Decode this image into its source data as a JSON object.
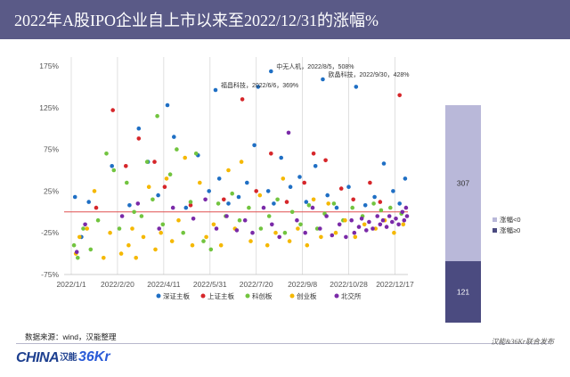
{
  "title": "2022年A股IPO企业自上市以来至2022/12/31的涨幅%",
  "source": "数据来源：wind，汉能整理",
  "footer_note": "汉能&36Kr联合发布",
  "logos": {
    "china": "CHINA",
    "china_cn": "汉能",
    "kr": "36Kr"
  },
  "colors": {
    "header_bg": "#5a5a87",
    "sh_sz_main": "#1f6fc4",
    "sh_main": "#d6262a",
    "star": "#72c43f",
    "chinext": "#f5b800",
    "bse": "#7a2aa8",
    "bar_up": "#b9b8d9",
    "bar_down": "#4b4b80",
    "zero_line": "#e05050"
  },
  "chart_data": [
    {
      "type": "scatter",
      "xlabel": "",
      "ylabel": "",
      "ylim": [
        -75,
        175
      ],
      "yticks": [
        "175%",
        "125%",
        "75%",
        "25%",
        "-25%",
        "-75%"
      ],
      "ytick_values": [
        175,
        125,
        75,
        25,
        -25,
        -75
      ],
      "xlim": [
        "2022-01-01",
        "2022-12-31"
      ],
      "xticks": [
        "2022/1/1",
        "2022/2/20",
        "2022/4/11",
        "2022/5/31",
        "2022/7/20",
        "2022/9/8",
        "2022/10/28",
        "2022/12/17"
      ],
      "xtick_dates": [
        "2022-01-01",
        "2022-02-20",
        "2022-04-11",
        "2022-05-31",
        "2022-07-20",
        "2022-09-08",
        "2022-10-28",
        "2022-12-17"
      ],
      "legend_position": "bottom",
      "annotations": [
        {
          "text": "中无人机，2022/8/5，508%",
          "date": "2022-08-05",
          "value": 508
        },
        {
          "text": "欧晶科技，2022/9/30，428%",
          "date": "2022-09-30",
          "value": 428
        },
        {
          "text": "福昌科技，2022/6/6，369%",
          "date": "2022-06-06",
          "value": 369
        }
      ],
      "series": [
        {
          "name": "深证主板",
          "color": "#1f6fc4",
          "points": [
            [
              "2022-01-05",
              18
            ],
            [
              "2022-01-12",
              -30
            ],
            [
              "2022-01-20",
              12
            ],
            [
              "2022-02-14",
              55
            ],
            [
              "2022-03-05",
              8
            ],
            [
              "2022-03-15",
              100
            ],
            [
              "2022-03-25",
              60
            ],
            [
              "2022-04-05",
              20
            ],
            [
              "2022-04-15",
              128
            ],
            [
              "2022-04-22",
              90
            ],
            [
              "2022-05-05",
              5
            ],
            [
              "2022-05-18",
              68
            ],
            [
              "2022-05-30",
              25
            ],
            [
              "2022-06-10",
              40
            ],
            [
              "2022-06-20",
              10
            ],
            [
              "2022-07-01",
              18
            ],
            [
              "2022-07-10",
              35
            ],
            [
              "2022-07-18",
              80
            ],
            [
              "2022-07-22",
              150
            ],
            [
              "2022-08-02",
              25
            ],
            [
              "2022-08-08",
              10
            ],
            [
              "2022-08-16",
              65
            ],
            [
              "2022-08-26",
              30
            ],
            [
              "2022-09-05",
              42
            ],
            [
              "2022-09-12",
              12
            ],
            [
              "2022-09-22",
              55
            ],
            [
              "2022-10-05",
              20
            ],
            [
              "2022-10-15",
              5
            ],
            [
              "2022-10-28",
              30
            ],
            [
              "2022-11-05",
              150
            ],
            [
              "2022-11-15",
              8
            ],
            [
              "2022-11-25",
              18
            ],
            [
              "2022-12-05",
              58
            ],
            [
              "2022-12-15",
              25
            ],
            [
              "2022-12-22",
              10
            ],
            [
              "2022-12-28",
              40
            ]
          ]
        },
        {
          "name": "上证主板",
          "color": "#d6262a",
          "points": [
            [
              "2022-01-28",
              5
            ],
            [
              "2022-02-15",
              122
            ],
            [
              "2022-03-01",
              55
            ],
            [
              "2022-03-15",
              88
            ],
            [
              "2022-04-01",
              60
            ],
            [
              "2022-04-12",
              30
            ],
            [
              "2022-05-10",
              8
            ],
            [
              "2022-06-15",
              15
            ],
            [
              "2022-07-05",
              135
            ],
            [
              "2022-07-20",
              25
            ],
            [
              "2022-08-05",
              70
            ],
            [
              "2022-08-22",
              12
            ],
            [
              "2022-09-10",
              35
            ],
            [
              "2022-09-20",
              70
            ],
            [
              "2022-10-03",
              62
            ],
            [
              "2022-10-20",
              28
            ],
            [
              "2022-11-02",
              15
            ],
            [
              "2022-11-20",
              35
            ],
            [
              "2022-12-01",
              12
            ],
            [
              "2022-12-22",
              140
            ]
          ]
        },
        {
          "name": "科创板",
          "color": "#72c43f",
          "points": [
            [
              "2022-01-04",
              -40
            ],
            [
              "2022-01-08",
              -55
            ],
            [
              "2022-01-14",
              -20
            ],
            [
              "2022-01-22",
              -45
            ],
            [
              "2022-01-30",
              -10
            ],
            [
              "2022-02-08",
              70
            ],
            [
              "2022-02-16",
              50
            ],
            [
              "2022-02-22",
              -20
            ],
            [
              "2022-03-02",
              35
            ],
            [
              "2022-03-10",
              0
            ],
            [
              "2022-03-18",
              -5
            ],
            [
              "2022-03-24",
              60
            ],
            [
              "2022-03-30",
              15
            ],
            [
              "2022-04-04",
              115
            ],
            [
              "2022-04-10",
              -15
            ],
            [
              "2022-04-18",
              45
            ],
            [
              "2022-04-25",
              75
            ],
            [
              "2022-05-02",
              -25
            ],
            [
              "2022-05-10",
              12
            ],
            [
              "2022-05-16",
              70
            ],
            [
              "2022-05-24",
              -35
            ],
            [
              "2022-06-01",
              -45
            ],
            [
              "2022-06-09",
              10
            ],
            [
              "2022-06-17",
              -5
            ],
            [
              "2022-06-24",
              22
            ],
            [
              "2022-07-02",
              -10
            ],
            [
              "2022-07-12",
              5
            ],
            [
              "2022-07-25",
              -20
            ],
            [
              "2022-08-03",
              -5
            ],
            [
              "2022-08-12",
              15
            ],
            [
              "2022-08-20",
              -25
            ],
            [
              "2022-08-28",
              0
            ],
            [
              "2022-09-06",
              -15
            ],
            [
              "2022-09-15",
              8
            ],
            [
              "2022-09-24",
              -20
            ],
            [
              "2022-10-02",
              -2
            ],
            [
              "2022-10-12",
              10
            ],
            [
              "2022-10-22",
              -10
            ],
            [
              "2022-11-01",
              5
            ],
            [
              "2022-11-12",
              -5
            ],
            [
              "2022-11-24",
              10
            ],
            [
              "2022-12-02",
              2
            ],
            [
              "2022-12-12",
              5
            ],
            [
              "2022-12-24",
              -2
            ]
          ]
        },
        {
          "name": "创业板",
          "color": "#f5b800",
          "points": [
            [
              "2022-01-06",
              -50
            ],
            [
              "2022-01-10",
              -30
            ],
            [
              "2022-01-18",
              -20
            ],
            [
              "2022-01-26",
              25
            ],
            [
              "2022-02-05",
              -55
            ],
            [
              "2022-02-12",
              -25
            ],
            [
              "2022-02-24",
              -50
            ],
            [
              "2022-03-04",
              -40
            ],
            [
              "2022-03-08",
              -20
            ],
            [
              "2022-03-12",
              -55
            ],
            [
              "2022-03-20",
              -30
            ],
            [
              "2022-03-26",
              30
            ],
            [
              "2022-04-02",
              -45
            ],
            [
              "2022-04-08",
              -25
            ],
            [
              "2022-04-14",
              40
            ],
            [
              "2022-04-20",
              -35
            ],
            [
              "2022-04-27",
              -10
            ],
            [
              "2022-05-04",
              65
            ],
            [
              "2022-05-12",
              -40
            ],
            [
              "2022-05-20",
              35
            ],
            [
              "2022-05-27",
              -30
            ],
            [
              "2022-06-04",
              -15
            ],
            [
              "2022-06-12",
              -40
            ],
            [
              "2022-06-20",
              50
            ],
            [
              "2022-06-27",
              -20
            ],
            [
              "2022-07-04",
              60
            ],
            [
              "2022-07-14",
              -35
            ],
            [
              "2022-07-24",
              20
            ],
            [
              "2022-08-01",
              -40
            ],
            [
              "2022-08-10",
              -25
            ],
            [
              "2022-08-18",
              40
            ],
            [
              "2022-08-25",
              -35
            ],
            [
              "2022-09-03",
              -20
            ],
            [
              "2022-09-13",
              -40
            ],
            [
              "2022-09-20",
              15
            ],
            [
              "2022-09-28",
              -30
            ],
            [
              "2022-10-06",
              10
            ],
            [
              "2022-10-14",
              -25
            ],
            [
              "2022-10-24",
              -10
            ],
            [
              "2022-11-04",
              -30
            ],
            [
              "2022-11-14",
              -15
            ],
            [
              "2022-11-26",
              -20
            ],
            [
              "2022-12-06",
              -10
            ],
            [
              "2022-12-16",
              -25
            ],
            [
              "2022-12-26",
              -15
            ]
          ]
        },
        {
          "name": "北交所",
          "color": "#7a2aa8",
          "points": [
            [
              "2022-01-07",
              -48
            ],
            [
              "2022-01-16",
              -15
            ],
            [
              "2022-02-25",
              -5
            ],
            [
              "2022-03-14",
              10
            ],
            [
              "2022-04-06",
              -20
            ],
            [
              "2022-04-21",
              5
            ],
            [
              "2022-05-13",
              -8
            ],
            [
              "2022-05-26",
              15
            ],
            [
              "2022-06-07",
              -20
            ],
            [
              "2022-06-18",
              -5
            ],
            [
              "2022-06-29",
              -22
            ],
            [
              "2022-07-08",
              -10
            ],
            [
              "2022-07-16",
              -25
            ],
            [
              "2022-07-28",
              5
            ],
            [
              "2022-08-06",
              -15
            ],
            [
              "2022-08-14",
              -30
            ],
            [
              "2022-08-24",
              95
            ],
            [
              "2022-09-02",
              -10
            ],
            [
              "2022-09-11",
              -25
            ],
            [
              "2022-09-19",
              5
            ],
            [
              "2022-09-27",
              -20
            ],
            [
              "2022-10-04",
              -5
            ],
            [
              "2022-10-10",
              -28
            ],
            [
              "2022-10-18",
              -15
            ],
            [
              "2022-10-25",
              -30
            ],
            [
              "2022-10-31",
              -10
            ],
            [
              "2022-11-03",
              -25
            ],
            [
              "2022-11-08",
              -18
            ],
            [
              "2022-11-11",
              -8
            ],
            [
              "2022-11-16",
              -22
            ],
            [
              "2022-11-19",
              -12
            ],
            [
              "2022-11-23",
              -20
            ],
            [
              "2022-11-28",
              -5
            ],
            [
              "2022-12-01",
              -15
            ],
            [
              "2022-12-04",
              -10
            ],
            [
              "2022-12-08",
              -18
            ],
            [
              "2022-12-11",
              -5
            ],
            [
              "2022-12-14",
              -12
            ],
            [
              "2022-12-18",
              -8
            ],
            [
              "2022-12-21",
              -15
            ],
            [
              "2022-12-25",
              0
            ],
            [
              "2022-12-27",
              -10
            ],
            [
              "2022-12-29",
              5
            ],
            [
              "2022-12-30",
              -5
            ]
          ]
        }
      ]
    },
    {
      "type": "bar",
      "stacked": true,
      "series": [
        {
          "name": "涨幅<0",
          "value": 307,
          "color": "#b9b8d9"
        },
        {
          "name": "涨幅≥0",
          "value": 121,
          "color": "#4b4b80"
        }
      ],
      "legend_position": "right"
    }
  ]
}
